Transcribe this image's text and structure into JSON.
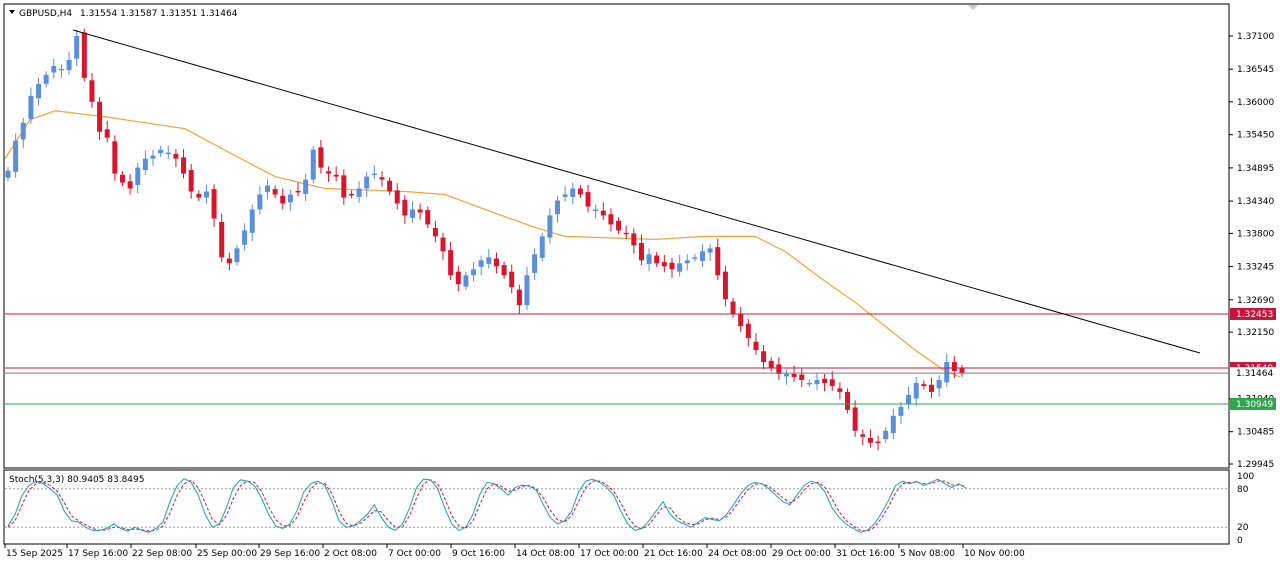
{
  "header": {
    "symbol": "GBPUSD,H4",
    "ohlc": "1.31554 1.31587 1.31351 1.31464"
  },
  "colors": {
    "bull": "#5b8fd9",
    "bear": "#d9142d",
    "ma": "#f5a23c",
    "trendline": "#000000",
    "resistance": "#c8143c",
    "support": "#2ea44f",
    "stoch_main": "#1aa3b5",
    "stoch_signal": "#d9142d"
  },
  "chart_data": [
    {
      "type": "candlestick",
      "symbol": "GBPUSD",
      "timeframe": "H4",
      "ylim": [
        1.29945,
        1.3738
      ],
      "y_ticks": [
        "1.37100",
        "1.36545",
        "1.36000",
        "1.35450",
        "1.34895",
        "1.34340",
        "1.33800",
        "1.33245",
        "1.32690",
        "1.32150",
        "1.31040",
        "1.30485",
        "1.29945"
      ],
      "x_ticks": [
        "15 Sep 2025",
        "17 Sep 16:00",
        "22 Sep 08:00",
        "25 Sep 00:00",
        "29 Sep 16:00",
        "2 Oct 08:00",
        "7 Oct 00:00",
        "9 Oct 16:00",
        "14 Oct 08:00",
        "17 Oct 00:00",
        "21 Oct 16:00",
        "24 Oct 08:00",
        "29 Oct 00:00",
        "31 Oct 16:00",
        "5 Nov 08:00",
        "10 Nov 00:00"
      ],
      "close_path": [
        1.3485,
        1.3535,
        1.3565,
        1.361,
        1.363,
        1.3645,
        1.366,
        1.3655,
        1.367,
        1.371,
        1.364,
        1.36,
        1.355,
        1.354,
        1.348,
        1.3465,
        1.3455,
        1.349,
        1.3505,
        1.351,
        1.352,
        1.3515,
        1.3505,
        1.348,
        1.345,
        1.344,
        1.345,
        1.3405,
        1.334,
        1.333,
        1.3355,
        1.3385,
        1.342,
        1.3445,
        1.346,
        1.3445,
        1.343,
        1.3445,
        1.345,
        1.347,
        1.352,
        1.349,
        1.348,
        1.3475,
        1.344,
        1.3445,
        1.3455,
        1.3475,
        1.348,
        1.347,
        1.345,
        1.343,
        1.341,
        1.342,
        1.3415,
        1.3395,
        1.3375,
        1.335,
        1.331,
        1.3295,
        1.331,
        1.332,
        1.3335,
        1.334,
        1.3325,
        1.331,
        1.329,
        1.326,
        1.331,
        1.3345,
        1.3375,
        1.341,
        1.3435,
        1.3445,
        1.3455,
        1.3445,
        1.3425,
        1.342,
        1.341,
        1.3395,
        1.3385,
        1.338,
        1.336,
        1.3335,
        1.3345,
        1.333,
        1.3325,
        1.332,
        1.333,
        1.3335,
        1.334,
        1.335,
        1.3355,
        1.331,
        1.327,
        1.3245,
        1.3225,
        1.3205,
        1.3185,
        1.3165,
        1.3155,
        1.3145,
        1.3145,
        1.314,
        1.3135,
        1.313,
        1.3135,
        1.313,
        1.3125,
        1.3115,
        1.3085,
        1.305,
        1.304,
        1.303,
        1.303,
        1.305,
        1.3075,
        1.309,
        1.311,
        1.313,
        1.3125,
        1.3115,
        1.3135,
        1.3165,
        1.315,
        1.31464
      ],
      "moving_average": {
        "points": [
          [
            0,
            1.3505
          ],
          [
            25,
            1.357
          ],
          [
            50,
            1.3585
          ],
          [
            100,
            1.3575
          ],
          [
            180,
            1.3555
          ],
          [
            230,
            1.351
          ],
          [
            270,
            1.3475
          ],
          [
            320,
            1.3455
          ],
          [
            400,
            1.345
          ],
          [
            440,
            1.3445
          ],
          [
            480,
            1.342
          ],
          [
            530,
            1.339
          ],
          [
            560,
            1.3375
          ],
          [
            650,
            1.337
          ],
          [
            700,
            1.3375
          ],
          [
            750,
            1.3375
          ],
          [
            780,
            1.335
          ],
          [
            820,
            1.33
          ],
          [
            850,
            1.3265
          ],
          [
            880,
            1.3225
          ],
          [
            910,
            1.3185
          ],
          [
            940,
            1.315
          ],
          [
            955,
            1.314
          ]
        ]
      },
      "trendline": {
        "from": [
          "17 Sep 16:00",
          1.372
        ],
        "to": [
          "10 Nov",
          1.318
        ]
      },
      "levels": [
        {
          "label": "1.32453",
          "price": 1.32453,
          "role": "resistance"
        },
        {
          "label": "1.31549",
          "price": 1.31549,
          "role": "resistance"
        },
        {
          "label": "1.31464",
          "price": 1.31464,
          "role": "bid"
        },
        {
          "label": "1.30949",
          "price": 1.30949,
          "role": "support"
        }
      ]
    },
    {
      "type": "line",
      "title": "Stoch(5,3,3) 80.9405 83.8495",
      "ylim": [
        0,
        100
      ],
      "y_ticks": [
        "100",
        "80",
        "20",
        "0"
      ],
      "levels": [
        80,
        20
      ],
      "series": [
        {
          "main": [
            22,
            40,
            70,
            85,
            92,
            88,
            80,
            70,
            45,
            30,
            28,
            20,
            15,
            15,
            18,
            25,
            18,
            14,
            20,
            15,
            12,
            18,
            28,
            60,
            85,
            96,
            90,
            70,
            40,
            20,
            25,
            50,
            82,
            94,
            92,
            85,
            65,
            40,
            22,
            18,
            25,
            45,
            75,
            88,
            92,
            85,
            60,
            30,
            20,
            22,
            30,
            40,
            55,
            35,
            20,
            15,
            25,
            50,
            82,
            95,
            94,
            80,
            50,
            25,
            15,
            20,
            40,
            72,
            90,
            88,
            80,
            70,
            82,
            86,
            84,
            78,
            55,
            35,
            25,
            30,
            45,
            75,
            92,
            95,
            90,
            82,
            70,
            45,
            25,
            15,
            18,
            30,
            45,
            60,
            40,
            30,
            25,
            20,
            28,
            35,
            32,
            30,
            40,
            55,
            72,
            85,
            90,
            88,
            80,
            70,
            60,
            55,
            70,
            85,
            92,
            88,
            75,
            50,
            35,
            25,
            18,
            12,
            15,
            25,
            42,
            62,
            85,
            92,
            88,
            92,
            85,
            90,
            95,
            88,
            82,
            88,
            80.94
          ],
          "signal": [
            20,
            30,
            55,
            78,
            88,
            90,
            85,
            76,
            58,
            38,
            30,
            24,
            18,
            15,
            16,
            20,
            20,
            16,
            17,
            16,
            14,
            15,
            22,
            42,
            70,
            88,
            93,
            82,
            58,
            32,
            24,
            38,
            65,
            85,
            92,
            90,
            76,
            52,
            32,
            22,
            22,
            35,
            60,
            80,
            90,
            88,
            72,
            45,
            26,
            22,
            26,
            35,
            46,
            44,
            30,
            20,
            20,
            38,
            66,
            88,
            94,
            88,
            65,
            38,
            22,
            18,
            30,
            56,
            80,
            88,
            84,
            76,
            78,
            84,
            85,
            80,
            66,
            46,
            32,
            28,
            38,
            60,
            82,
            92,
            92,
            86,
            76,
            58,
            36,
            22,
            17,
            24,
            38,
            52,
            50,
            36,
            28,
            24,
            25,
            32,
            34,
            32,
            36,
            48,
            64,
            78,
            87,
            88,
            84,
            75,
            66,
            58,
            64,
            78,
            88,
            90,
            82,
            64,
            44,
            30,
            22,
            15,
            14,
            20,
            34,
            52,
            74,
            88,
            90,
            90,
            88,
            88,
            92,
            92,
            86,
            86,
            83.85
          ]
        }
      ]
    }
  ]
}
